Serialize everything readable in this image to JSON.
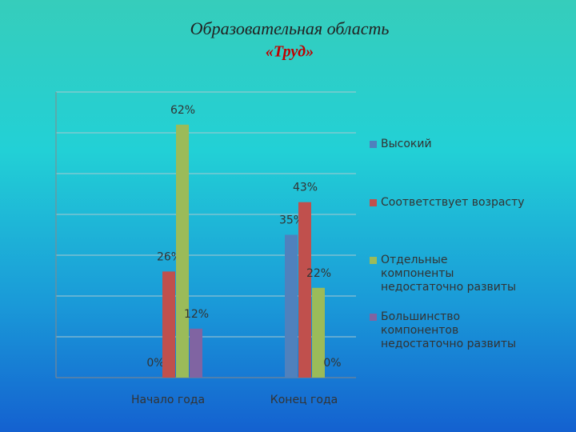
{
  "chart_data": {
    "type": "bar",
    "title": "Образовательная область",
    "subtitle": "«Труд»",
    "categories": [
      "Начало года",
      "Конец года"
    ],
    "series": [
      {
        "name": "Высокий",
        "color": "#4f81bd",
        "values": [
          0,
          35
        ],
        "value_labels": [
          "0%",
          "35%"
        ]
      },
      {
        "name": "Соответствует возрасту",
        "color": "#c0504d",
        "values": [
          26,
          43
        ],
        "value_labels": [
          "26%",
          "43%"
        ]
      },
      {
        "name": "Отдельные компоненты недостаточно развиты",
        "color": "#9bbb59",
        "values": [
          62,
          22
        ],
        "value_labels": [
          "62%",
          "22%"
        ]
      },
      {
        "name": "Большинство компонентов недостаточно развиты",
        "color": "#8064a2",
        "values": [
          12,
          0
        ],
        "value_labels": [
          "12%",
          "0%"
        ]
      }
    ],
    "ylim": [
      0,
      70
    ],
    "yticks": [
      0,
      10,
      20,
      30,
      40,
      50,
      60,
      70
    ],
    "grid": true,
    "legend": "right"
  }
}
